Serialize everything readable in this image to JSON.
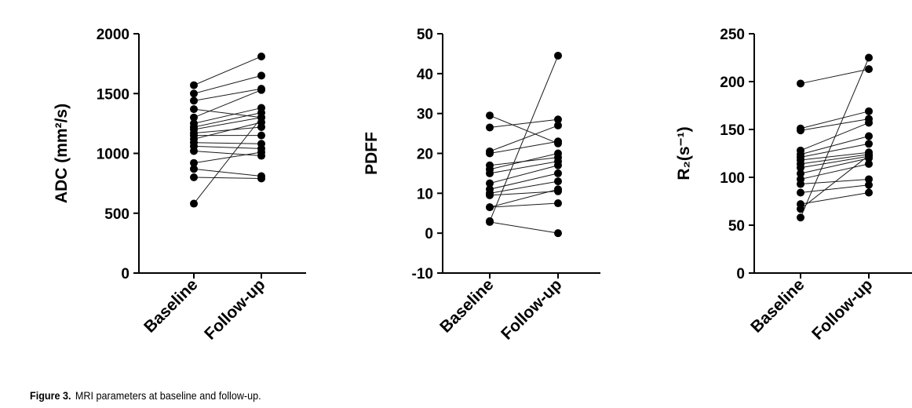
{
  "caption": {
    "label": "Figure 3.",
    "text": "MRI parameters at baseline and follow-up."
  },
  "chart_data": [
    {
      "type": "line",
      "title": "",
      "xlabel": "",
      "ylabel": "ADC (mm²/s)",
      "categories": [
        "Baseline",
        "Follow-up"
      ],
      "ylim": [
        0,
        2000
      ],
      "yticks": [
        0,
        500,
        1000,
        1500,
        2000
      ],
      "grid": false,
      "pairs": [
        [
          1570,
          1810
        ],
        [
          1500,
          1650
        ],
        [
          1440,
          1540
        ],
        [
          1370,
          1300
        ],
        [
          1300,
          1530
        ],
        [
          1250,
          1380
        ],
        [
          1220,
          1340
        ],
        [
          1200,
          1300
        ],
        [
          1170,
          1220
        ],
        [
          1150,
          1150
        ],
        [
          1120,
          1260
        ],
        [
          1090,
          1080
        ],
        [
          1060,
          1040
        ],
        [
          1020,
          980
        ],
        [
          920,
          1010
        ],
        [
          870,
          810
        ],
        [
          800,
          790
        ],
        [
          580,
          1300
        ]
      ]
    },
    {
      "type": "line",
      "title": "",
      "xlabel": "",
      "ylabel": "PDFF",
      "categories": [
        "Baseline",
        "Follow-up"
      ],
      "ylim": [
        -10,
        50
      ],
      "yticks": [
        -10,
        0,
        10,
        20,
        30,
        40,
        50
      ],
      "grid": false,
      "pairs": [
        [
          29.5,
          22.5
        ],
        [
          26.5,
          28.5
        ],
        [
          20.5,
          27.0
        ],
        [
          20.0,
          23.0
        ],
        [
          17.0,
          19.0
        ],
        [
          16.0,
          20.0
        ],
        [
          15.0,
          18.0
        ],
        [
          12.5,
          17.0
        ],
        [
          11.0,
          15.0
        ],
        [
          10.0,
          13.0
        ],
        [
          9.5,
          10.5
        ],
        [
          6.5,
          11.0
        ],
        [
          6.5,
          7.5
        ],
        [
          3.0,
          44.5
        ],
        [
          2.8,
          0.0
        ]
      ]
    },
    {
      "type": "line",
      "title": "",
      "xlabel": "",
      "ylabel": "R₂(s⁻¹)",
      "categories": [
        "Baseline",
        "Follow-up"
      ],
      "ylim": [
        0,
        250
      ],
      "yticks": [
        0,
        50,
        100,
        150,
        200,
        250
      ],
      "grid": false,
      "pairs": [
        [
          198,
          213
        ],
        [
          151,
          169
        ],
        [
          149,
          161
        ],
        [
          128,
          157
        ],
        [
          124,
          143
        ],
        [
          121,
          135
        ],
        [
          118,
          126
        ],
        [
          114,
          124
        ],
        [
          110,
          122
        ],
        [
          104,
          120
        ],
        [
          98,
          114
        ],
        [
          93,
          98
        ],
        [
          84,
          92
        ],
        [
          72,
          84
        ],
        [
          67,
          123
        ],
        [
          58,
          225
        ]
      ]
    }
  ]
}
